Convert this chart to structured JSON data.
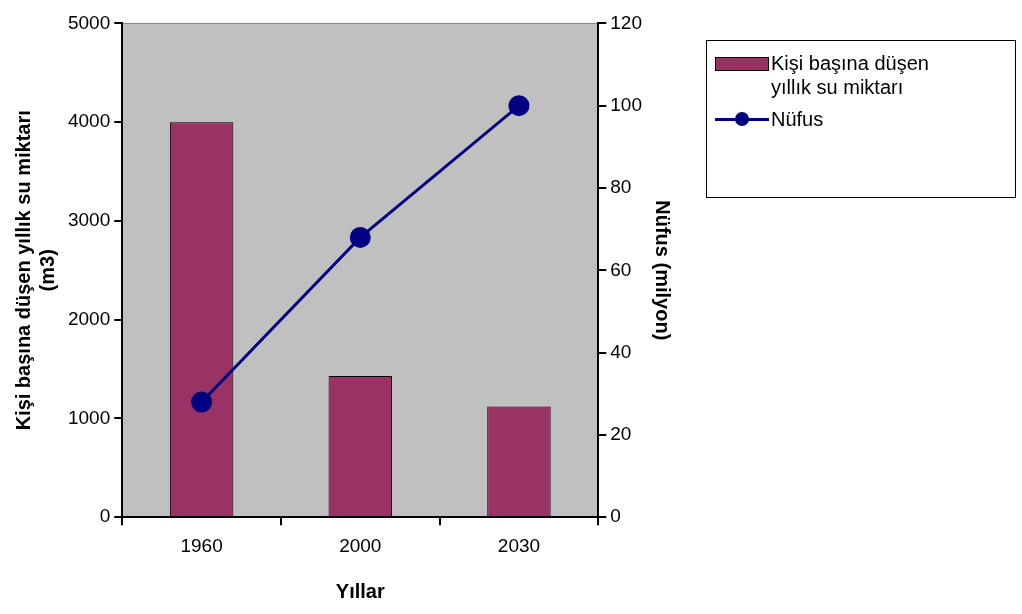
{
  "chart_data": {
    "type": "bar",
    "categories": [
      "1960",
      "2000",
      "2030"
    ],
    "xlabel": "Yıllar",
    "ylabel": "Kişi başına düşen yıllık su miktarı (m3)",
    "y2label": "Nüfus (milyon)",
    "series": [
      {
        "name": "Kişi başına düşen yıllık su miktarı",
        "color": "#993366",
        "values": [
          4000,
          1430,
          1120
        ]
      },
      {
        "name": "Nüfus",
        "type": "line",
        "axis": "y2",
        "color": "#000080",
        "values": [
          28,
          68,
          100
        ]
      }
    ],
    "ylim": [
      0,
      5000
    ],
    "yticks": [
      0,
      1000,
      2000,
      3000,
      4000,
      5000
    ],
    "y2lim": [
      0,
      120
    ],
    "y2ticks": [
      0,
      20,
      40,
      60,
      80,
      100,
      120
    ],
    "grid": false,
    "legend": "right",
    "marker": "circle",
    "line_style": "solid"
  }
}
